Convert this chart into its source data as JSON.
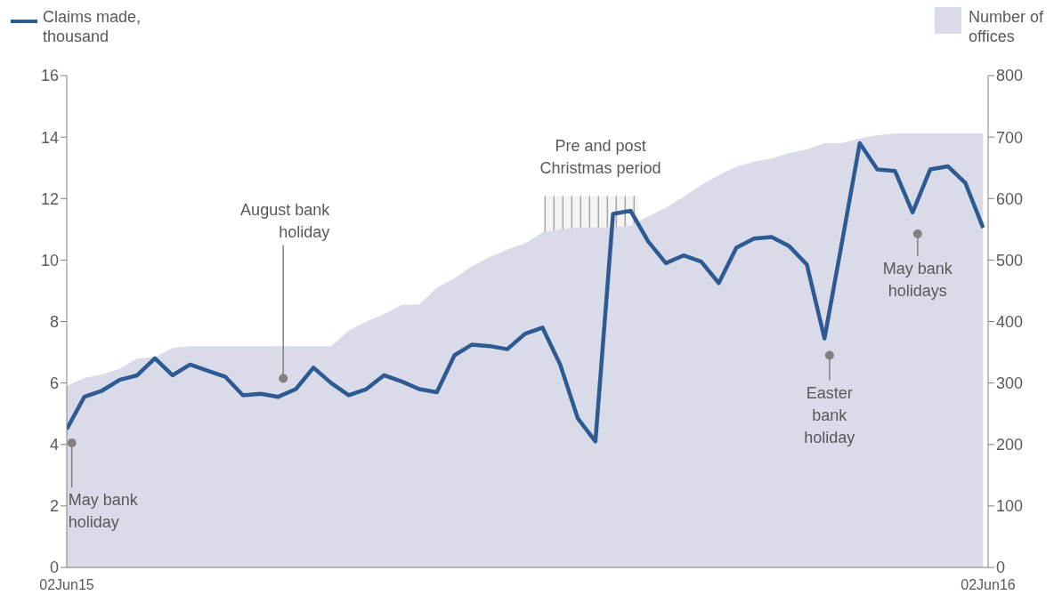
{
  "chart_data": {
    "type": "line",
    "x": [
      "2015-06-02",
      "2015-06-09",
      "2015-06-16",
      "2015-06-23",
      "2015-06-30",
      "2015-07-07",
      "2015-07-14",
      "2015-07-21",
      "2015-07-28",
      "2015-08-04",
      "2015-08-11",
      "2015-08-18",
      "2015-08-25",
      "2015-09-01",
      "2015-09-08",
      "2015-09-15",
      "2015-09-22",
      "2015-09-29",
      "2015-10-06",
      "2015-10-13",
      "2015-10-20",
      "2015-10-27",
      "2015-11-03",
      "2015-11-10",
      "2015-11-17",
      "2015-11-24",
      "2015-12-01",
      "2015-12-08",
      "2015-12-15",
      "2015-12-22",
      "2015-12-29",
      "2016-01-05",
      "2016-01-12",
      "2016-01-19",
      "2016-01-26",
      "2016-02-02",
      "2016-02-09",
      "2016-02-16",
      "2016-02-23",
      "2016-03-01",
      "2016-03-08",
      "2016-03-15",
      "2016-03-22",
      "2016-03-29",
      "2016-04-05",
      "2016-04-12",
      "2016-04-19",
      "2016-04-26",
      "2016-05-03",
      "2016-05-10",
      "2016-05-17",
      "2016-05-24",
      "2016-05-31"
    ],
    "series": [
      {
        "name": "Claims made, thousand",
        "color": "#2e5a93",
        "values": [
          4.5,
          5.55,
          5.75,
          6.1,
          6.25,
          6.8,
          6.25,
          6.6,
          6.4,
          6.2,
          5.6,
          5.65,
          5.55,
          5.8,
          6.5,
          6.0,
          5.6,
          5.8,
          6.25,
          6.05,
          5.8,
          5.7,
          6.9,
          7.25,
          7.2,
          7.1,
          7.6,
          7.8,
          6.6,
          4.85,
          4.1,
          11.5,
          11.6,
          10.6,
          9.9,
          10.15,
          9.95,
          9.25,
          10.4,
          10.7,
          10.75,
          10.45,
          9.85,
          7.45,
          10.6,
          13.8,
          12.95,
          12.9,
          11.55,
          12.95,
          13.05,
          12.5,
          11.05
        ]
      },
      {
        "name": "Number of offices",
        "type": "area",
        "axis": "y2",
        "color": "#d9dce8",
        "values": [
          295,
          308,
          314,
          323,
          340,
          342,
          357,
          360,
          360,
          360,
          360,
          360,
          360,
          360,
          360,
          360,
          385,
          400,
          412,
          427,
          428,
          455,
          470,
          490,
          505,
          517,
          527,
          545,
          550,
          553,
          553,
          553,
          556,
          571,
          585,
          603,
          622,
          638,
          652,
          660,
          665,
          674,
          680,
          690,
          690,
          698,
          703,
          706,
          706,
          706,
          706,
          706,
          706
        ]
      }
    ],
    "xlim": [
      "2015-06-02",
      "2016-06-02"
    ],
    "xticks": [
      {
        "value": "2015-06-02",
        "label": "02Jun15"
      },
      {
        "value": "2016-06-02",
        "label": "02Jun16"
      }
    ],
    "ylim": [
      0,
      16
    ],
    "yticks": [
      0,
      2,
      4,
      6,
      8,
      10,
      12,
      14,
      16
    ],
    "y2lim": [
      0,
      800
    ],
    "y2ticks": [
      0,
      100,
      200,
      300,
      400,
      500,
      600,
      700,
      800
    ],
    "bands": [
      {
        "axis": "x",
        "from": "2015-12-09",
        "to": "2016-01-15",
        "label": "Pre and post Christmas period",
        "color": "#a6a6a6"
      }
    ],
    "annotations": [
      {
        "text": "May bank holiday",
        "x": "2015-06-04",
        "y": 4.05
      },
      {
        "text": "August bank holiday",
        "x": "2015-08-27",
        "y": 6.15
      },
      {
        "text": "Easter bank holiday",
        "x": "2016-03-31",
        "y": 6.9
      },
      {
        "text": "May bank holidays",
        "x": "2016-05-05",
        "y": 10.85
      }
    ],
    "grid": false,
    "legend": "top",
    "marker": "none",
    "line_style": "solid"
  }
}
